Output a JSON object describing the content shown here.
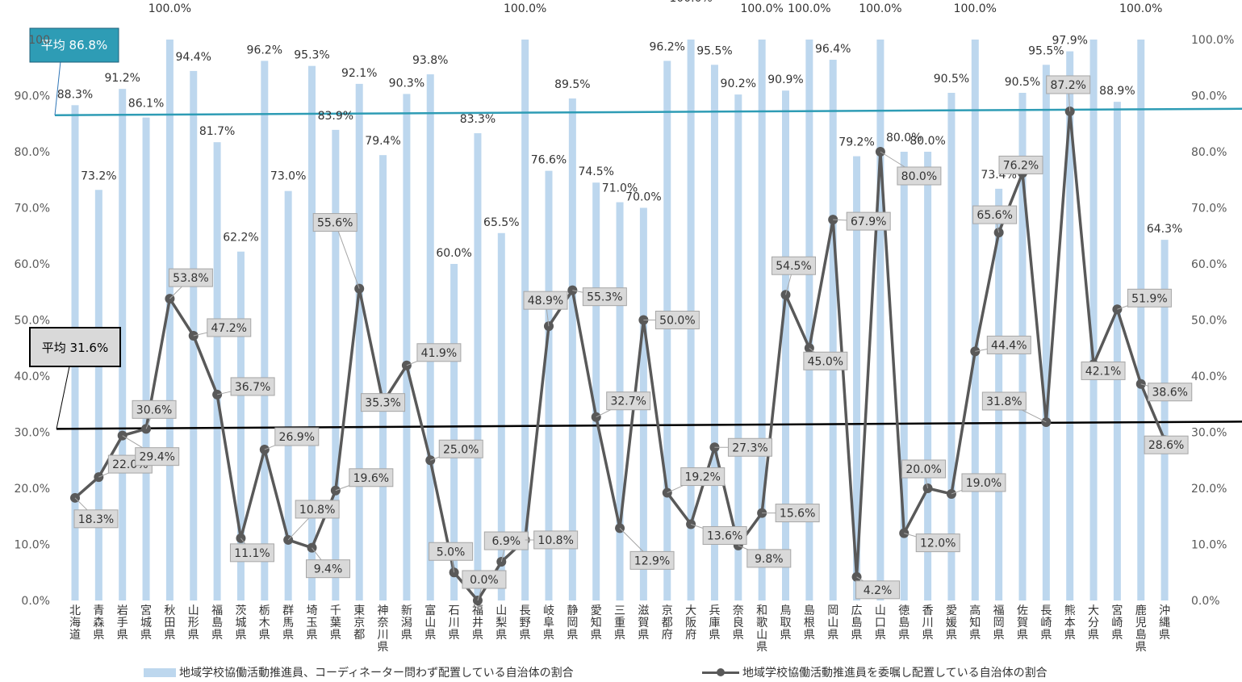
{
  "chart_data": {
    "type": "bar+line",
    "categories": [
      "北海道",
      "青森県",
      "岩手県",
      "宮城県",
      "秋田県",
      "山形県",
      "福島県",
      "茨城県",
      "栃木県",
      "群馬県",
      "埼玉県",
      "千葉県",
      "東京都",
      "神奈川県",
      "新潟県",
      "富山県",
      "石川県",
      "福井県",
      "山梨県",
      "長野県",
      "岐阜県",
      "静岡県",
      "愛知県",
      "三重県",
      "滋賀県",
      "京都府",
      "大阪府",
      "兵庫県",
      "奈良県",
      "和歌山県",
      "鳥取県",
      "島根県",
      "岡山県",
      "広島県",
      "山口県",
      "徳島県",
      "香川県",
      "愛媛県",
      "高知県",
      "福岡県",
      "佐賀県",
      "長崎県",
      "熊本県",
      "大分県",
      "宮崎県",
      "鹿児島県",
      "沖縄県"
    ],
    "series": [
      {
        "name": "地域学校協働活動推進員、コーディネーター問わず配置している自治体の割合",
        "type": "bar",
        "color": "#BDD7EE",
        "values": [
          88.3,
          73.2,
          91.2,
          86.1,
          100.0,
          94.4,
          81.7,
          62.2,
          96.2,
          73.0,
          95.3,
          83.9,
          92.1,
          79.4,
          90.3,
          93.8,
          60.0,
          83.3,
          65.5,
          100.0,
          76.6,
          89.5,
          74.5,
          71.0,
          70.0,
          96.2,
          100.0,
          95.5,
          90.2,
          100.0,
          90.9,
          100.0,
          96.4,
          79.2,
          100.0,
          80.0,
          80.0,
          90.5,
          100.0,
          73.4,
          90.5,
          95.5,
          97.9,
          100.0,
          88.9,
          100.0,
          64.3
        ]
      },
      {
        "name": "地域学校協働活動推進員を委嘱し配置している自治体の割合",
        "type": "line",
        "color": "#595959",
        "values": [
          18.3,
          22.0,
          29.4,
          30.6,
          53.8,
          47.2,
          36.7,
          11.1,
          26.9,
          10.8,
          9.4,
          19.6,
          55.6,
          35.3,
          41.9,
          25.0,
          5.0,
          0.0,
          6.9,
          10.8,
          48.9,
          55.3,
          32.7,
          12.9,
          50.0,
          19.2,
          13.6,
          27.3,
          9.8,
          15.6,
          54.5,
          45.0,
          67.9,
          4.2,
          80.0,
          12.0,
          20.0,
          19.0,
          44.4,
          65.6,
          76.2,
          31.8,
          87.2,
          42.1,
          51.9,
          38.6,
          28.6
        ]
      }
    ],
    "averages": [
      {
        "label": "平均",
        "value": 86.8,
        "value_text": "86.8%",
        "color": "#2E9CB5"
      },
      {
        "label": "平均",
        "value": 31.6,
        "value_text": "31.6%",
        "color": "#000000"
      }
    ],
    "ylim": [
      0,
      100
    ],
    "left_ticks": [
      "0.0%",
      "10.0%",
      "20.0%",
      "30.0%",
      "40.0%",
      "50.0%",
      "60.0%",
      "70.0%",
      "80.0%",
      "90.0%",
      "100"
    ],
    "right_ticks": [
      "0.0%",
      "10.0%",
      "20.0%",
      "30.0%",
      "40.0%",
      "50.0%",
      "60.0%",
      "70.0%",
      "80.0%",
      "90.0%",
      "100.0%"
    ],
    "grid": false,
    "legend_position": "bottom"
  }
}
